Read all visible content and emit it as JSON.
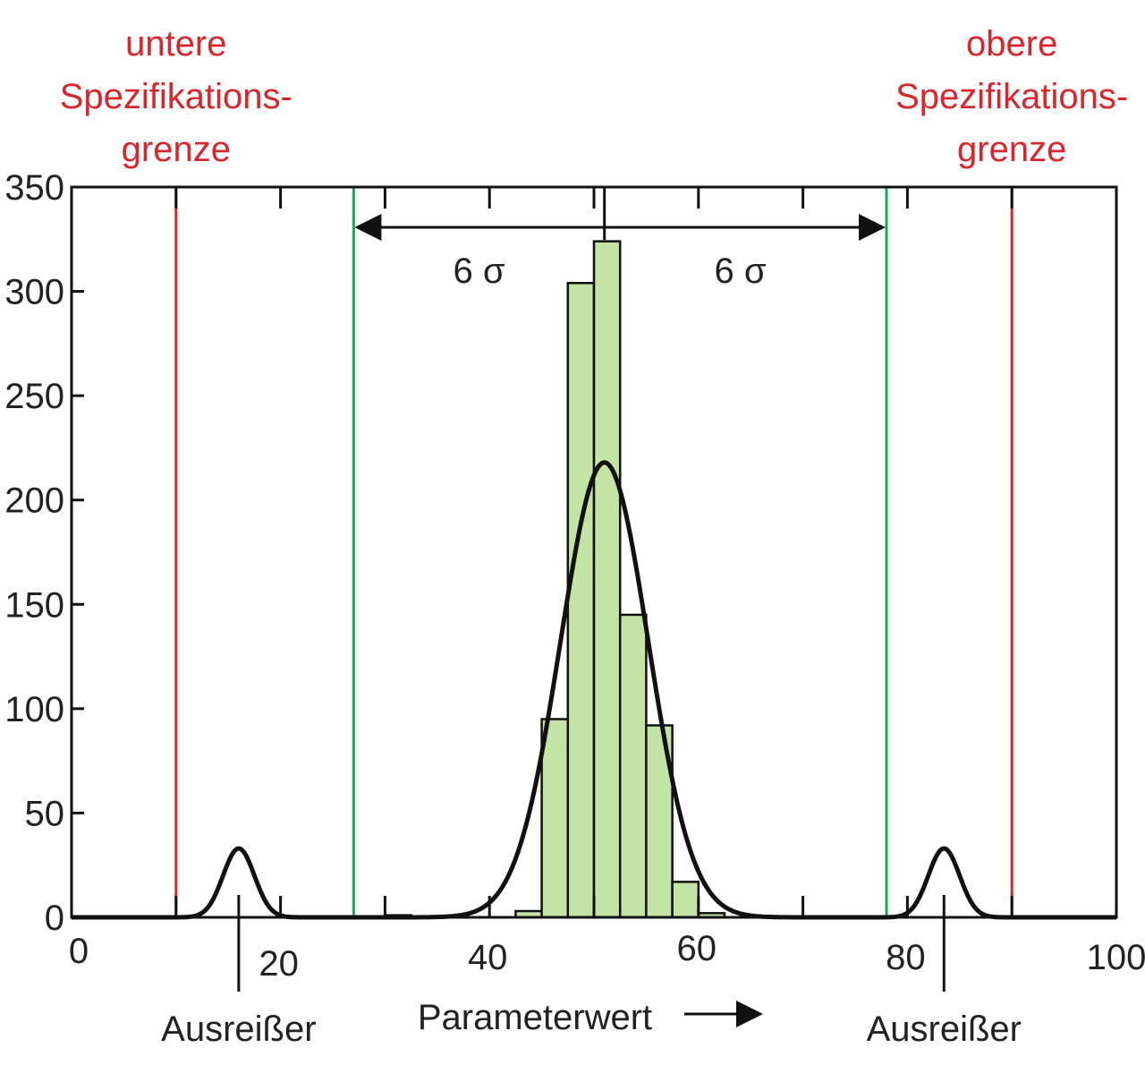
{
  "colors": {
    "spec_limit": "#d9262c",
    "sigma_limit": "#1aa85a",
    "bar_fill": "#c4e4a6",
    "bar_stroke": "#111111",
    "curve": "#111111"
  },
  "chart_data": {
    "type": "bar",
    "title": "",
    "xlabel": "Parameterwert",
    "ylabel": "",
    "xlim": [
      0,
      100
    ],
    "ylim": [
      0,
      350
    ],
    "x_ticks": [
      0,
      20,
      40,
      60,
      80,
      100
    ],
    "y_ticks": [
      0,
      50,
      100,
      150,
      200,
      250,
      300,
      350
    ],
    "bars": [
      {
        "x0": 30,
        "x1": 32.5,
        "value": 1
      },
      {
        "x0": 42.5,
        "x1": 45,
        "value": 3
      },
      {
        "x0": 45,
        "x1": 47.5,
        "value": 95
      },
      {
        "x0": 47.5,
        "x1": 50,
        "value": 304
      },
      {
        "x0": 50,
        "x1": 52.5,
        "value": 324
      },
      {
        "x0": 52.5,
        "x1": 55,
        "value": 145
      },
      {
        "x0": 55,
        "x1": 57.5,
        "value": 92
      },
      {
        "x0": 57.5,
        "x1": 60,
        "value": 17
      },
      {
        "x0": 60,
        "x1": 62.5,
        "value": 2
      }
    ],
    "curves": [
      {
        "mean": 51,
        "sigma": 4.2,
        "peak": 218
      },
      {
        "mean": 16,
        "sigma": 1.5,
        "peak": 33
      },
      {
        "mean": 83.5,
        "sigma": 1.5,
        "peak": 33
      }
    ],
    "spec_limits": [
      {
        "x": 10,
        "label_lines": [
          "untere",
          "Spezifikations-",
          "grenze"
        ]
      },
      {
        "x": 90,
        "label_lines": [
          "obere",
          "Spezifikations-",
          "grenze"
        ]
      }
    ],
    "sigma_limits": [
      27,
      78
    ],
    "center": 51,
    "sigma_annotations": [
      {
        "x": 39,
        "text": "6 σ"
      },
      {
        "x": 64,
        "text": "6 σ"
      }
    ],
    "outliers": [
      {
        "x": 16,
        "label": "Ausreißer"
      },
      {
        "x": 83.5,
        "label": "Ausreißer"
      }
    ]
  }
}
